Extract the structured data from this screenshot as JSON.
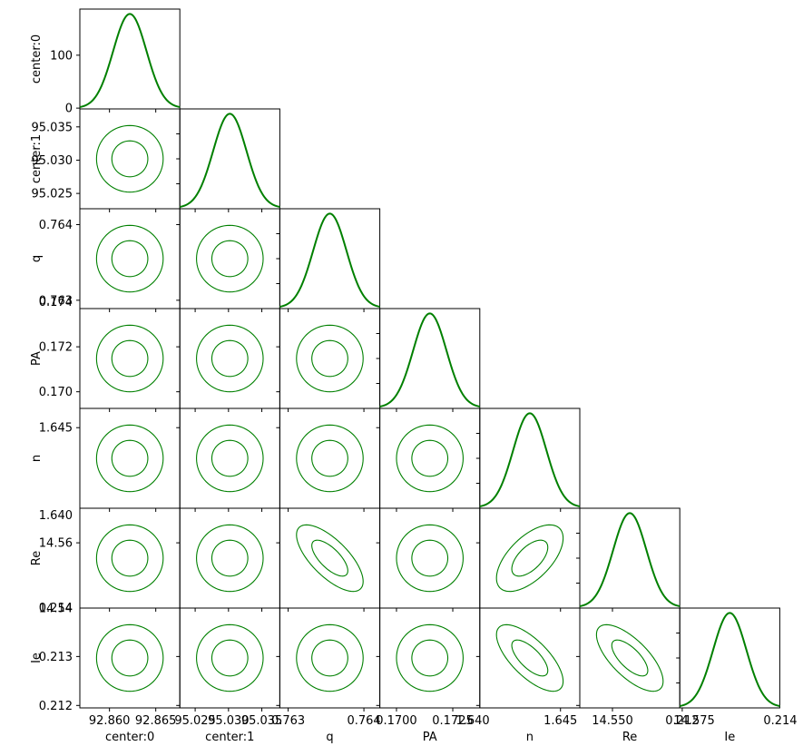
{
  "chart_data": {
    "type": "corner",
    "color": "#008000",
    "parameters": [
      {
        "name": "center:0",
        "xticks": [
          "92.860",
          "92.865"
        ],
        "yticks": [
          "0",
          "100"
        ]
      },
      {
        "name": "center:1",
        "xticks": [
          "95.025",
          "95.030",
          "95.035"
        ],
        "yticks": [
          "95.025",
          "95.030",
          "95.035"
        ]
      },
      {
        "name": "q",
        "xticks": [
          "0.763",
          "0.764"
        ],
        "yticks": [
          "0.763",
          "0.764"
        ]
      },
      {
        "name": "PA",
        "xticks": [
          "0.1700",
          "0.1725"
        ],
        "yticks": [
          "0.170",
          "0.172",
          "0.174"
        ]
      },
      {
        "name": "n",
        "xticks": [
          "1.640",
          "1.645"
        ],
        "yticks": [
          "1.640",
          "1.645"
        ]
      },
      {
        "name": "Re",
        "xticks": [
          "14.550",
          "14.575"
        ],
        "yticks": [
          "14.54",
          "14.56"
        ]
      },
      {
        "name": "Ie",
        "xticks": [
          "0.212",
          "0.214"
        ],
        "yticks": [
          "0.212",
          "0.213",
          "0.214"
        ]
      }
    ],
    "diagonal_peak_density": 178,
    "marginal_means": [
      92.8622,
      95.0302,
      0.76355,
      0.17148,
      1.64325,
      14.5553,
      0.21297
    ],
    "marginal_sigmas": [
      0.0018,
      0.0025,
      0.00022,
      0.00074,
      0.00095,
      0.0051,
      0.00034
    ],
    "contour_levels": [
      "1-sigma",
      "2-sigma"
    ],
    "correlations": [
      {
        "x": "q",
        "y": "Re",
        "sign": "negative"
      },
      {
        "x": "n",
        "y": "Re",
        "sign": "positive"
      },
      {
        "x": "n",
        "y": "Ie",
        "sign": "negative"
      },
      {
        "x": "Re",
        "y": "Ie",
        "sign": "negative"
      }
    ]
  }
}
